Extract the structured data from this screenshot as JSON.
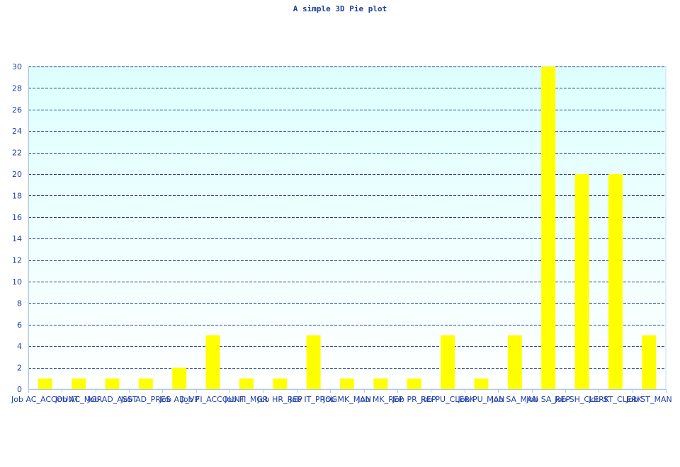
{
  "chart_data": {
    "type": "bar",
    "title": "A simple 3D Pie plot",
    "xlabel": "",
    "ylabel": "",
    "ylim": [
      0,
      30
    ],
    "yticks": [
      0,
      2,
      4,
      6,
      8,
      10,
      12,
      14,
      16,
      18,
      20,
      22,
      24,
      26,
      28,
      30
    ],
    "grid": true,
    "categories": [
      "Job AC_ACCOUNT",
      "Job AC_MGR",
      "Job AD_ASST",
      "Job AD_PRES",
      "Job AD_VP",
      "Job FI_ACCOUNT",
      "Job FI_MGR",
      "Job HR_REP",
      "Job IT_PROG",
      "Job MK_MAN",
      "Job MK_REP",
      "Job PR_REP",
      "Job PU_CLERK",
      "Job PU_MAN",
      "Job SA_MAN",
      "Job SA_REP",
      "Job SH_CLERK",
      "Job ST_CLERK",
      "Job ST_MAN"
    ],
    "values": [
      1,
      1,
      1,
      1,
      2,
      5,
      1,
      1,
      5,
      1,
      1,
      1,
      5,
      1,
      5,
      30,
      20,
      20,
      5
    ],
    "colors": {
      "bar": "#ffff00",
      "grid": "#1f3f8f",
      "plot_top": "#ddffff",
      "plot_bottom": "#ffffff",
      "axis": "#a8c8e8",
      "text": "#1f3fa8"
    }
  }
}
